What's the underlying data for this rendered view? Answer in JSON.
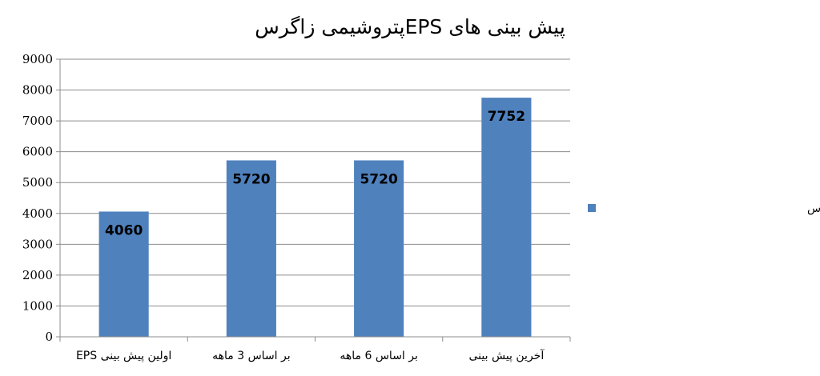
{
  "chart_data": {
    "type": "bar",
    "title": "پیش بینی های EPSپتروشیمی زاگرس",
    "categories": [
      "اولین پیش بینی EPS",
      "بر اساس 3 ماهه",
      "بر اساس 6 ماهه",
      "آخرین پیش بینی"
    ],
    "series": [
      {
        "name": "پیش بینی های  EPSپتروشیمی زاگرس",
        "values": [
          4060,
          5720,
          5720,
          7752
        ],
        "color": "#4F81BD"
      }
    ],
    "data_labels": [
      "4060",
      "5720",
      "5720",
      "7752"
    ],
    "ylim": [
      0,
      9000
    ],
    "yticks": [
      "0",
      "1000",
      "2000",
      "3000",
      "4000",
      "5000",
      "6000",
      "7000",
      "8000",
      "9000"
    ],
    "grid": true,
    "legend_position": "right"
  }
}
